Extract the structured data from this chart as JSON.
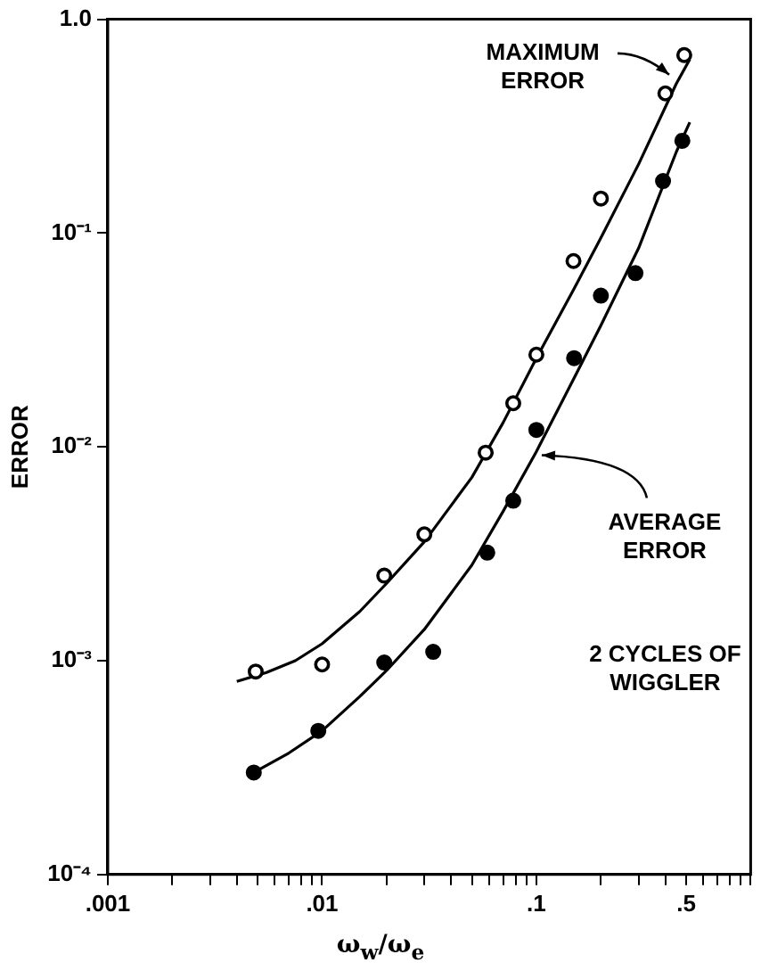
{
  "chart_data": {
    "type": "scatter",
    "xlabel": "ω$_{w}$/ω$_{e}$",
    "ylabel": "ERROR",
    "log": "xy",
    "grid": false,
    "legend": false,
    "marker": "circle",
    "xlim": [
      0.001,
      1
    ],
    "ylim": [
      0.0001,
      1
    ],
    "xticks": [
      {
        "value": 0.001,
        "label": ".001"
      },
      {
        "value": 0.002,
        "label": null
      },
      {
        "value": 0.003,
        "label": null
      },
      {
        "value": 0.004,
        "label": null
      },
      {
        "value": 0.005,
        "label": null
      },
      {
        "value": 0.006,
        "label": null
      },
      {
        "value": 0.007,
        "label": null
      },
      {
        "value": 0.008,
        "label": null
      },
      {
        "value": 0.009,
        "label": null
      },
      {
        "value": 0.01,
        "label": ".01"
      },
      {
        "value": 0.02,
        "label": null
      },
      {
        "value": 0.03,
        "label": null
      },
      {
        "value": 0.04,
        "label": null
      },
      {
        "value": 0.05,
        "label": null
      },
      {
        "value": 0.06,
        "label": null
      },
      {
        "value": 0.07,
        "label": null
      },
      {
        "value": 0.08,
        "label": null
      },
      {
        "value": 0.09,
        "label": null
      },
      {
        "value": 0.1,
        "label": ".1"
      },
      {
        "value": 0.2,
        "label": null
      },
      {
        "value": 0.3,
        "label": null
      },
      {
        "value": 0.4,
        "label": null
      },
      {
        "value": 0.5,
        "label": ".5"
      },
      {
        "value": 0.6,
        "label": null
      },
      {
        "value": 0.7,
        "label": null
      },
      {
        "value": 0.8,
        "label": null
      },
      {
        "value": 0.9,
        "label": null
      },
      {
        "value": 1,
        "label": null
      }
    ],
    "yticks": [
      {
        "value": 0.0001,
        "label": "10⁻⁴"
      },
      {
        "value": 0.001,
        "label": "10⁻³"
      },
      {
        "value": 0.01,
        "label": "10⁻²"
      },
      {
        "value": 0.1,
        "label": "10⁻¹"
      },
      {
        "value": 1,
        "label": "1.0"
      }
    ],
    "series": [
      {
        "color": "#000000",
        "x": [
          0.0049,
          0.01,
          0.0195,
          0.03,
          0.058,
          0.078,
          0.1,
          0.149,
          0.2,
          0.4,
          0.49
        ],
        "values": [
          0.00089,
          0.00096,
          0.0025,
          0.0039,
          0.0094,
          0.016,
          0.027,
          0.074,
          0.145,
          0.45,
          0.68
        ]
      },
      {
        "color": "#000000",
        "x": [
          0.0048,
          0.0096,
          0.0195,
          0.033,
          0.059,
          0.078,
          0.1,
          0.15,
          0.2,
          0.29,
          0.39,
          0.48
        ],
        "values": [
          0.0003,
          0.00047,
          0.00098,
          0.0011,
          0.0032,
          0.0056,
          0.012,
          0.026,
          0.051,
          0.065,
          0.175,
          0.27
        ]
      },
      {
        "type": "line",
        "marker": "none",
        "color": "#000000",
        "x": [
          0.004,
          0.0055,
          0.0075,
          0.01,
          0.015,
          0.02,
          0.03,
          0.05,
          0.07,
          0.1,
          0.15,
          0.2,
          0.3,
          0.45,
          0.52
        ],
        "values": [
          0.0008,
          0.00088,
          0.001,
          0.0012,
          0.0017,
          0.0023,
          0.0036,
          0.0072,
          0.013,
          0.026,
          0.055,
          0.095,
          0.21,
          0.5,
          0.65
        ]
      },
      {
        "type": "line",
        "marker": "none",
        "color": "#000000",
        "x": [
          0.0048,
          0.007,
          0.01,
          0.015,
          0.02,
          0.03,
          0.05,
          0.07,
          0.1,
          0.15,
          0.2,
          0.3,
          0.45,
          0.52
        ],
        "values": [
          0.0003,
          0.00037,
          0.00047,
          0.00068,
          0.0009,
          0.0014,
          0.0028,
          0.005,
          0.0095,
          0.021,
          0.037,
          0.085,
          0.24,
          0.33
        ]
      }
    ],
    "annotations": [
      {
        "text": "MAXIMUM ERROR",
        "x": 0.45,
        "y": 0.55
      },
      {
        "text": "AVERAGE ERROR",
        "x": 0.1,
        "y": 0.0095
      },
      "2 CYCLES OF WIGGLER"
    ]
  }
}
